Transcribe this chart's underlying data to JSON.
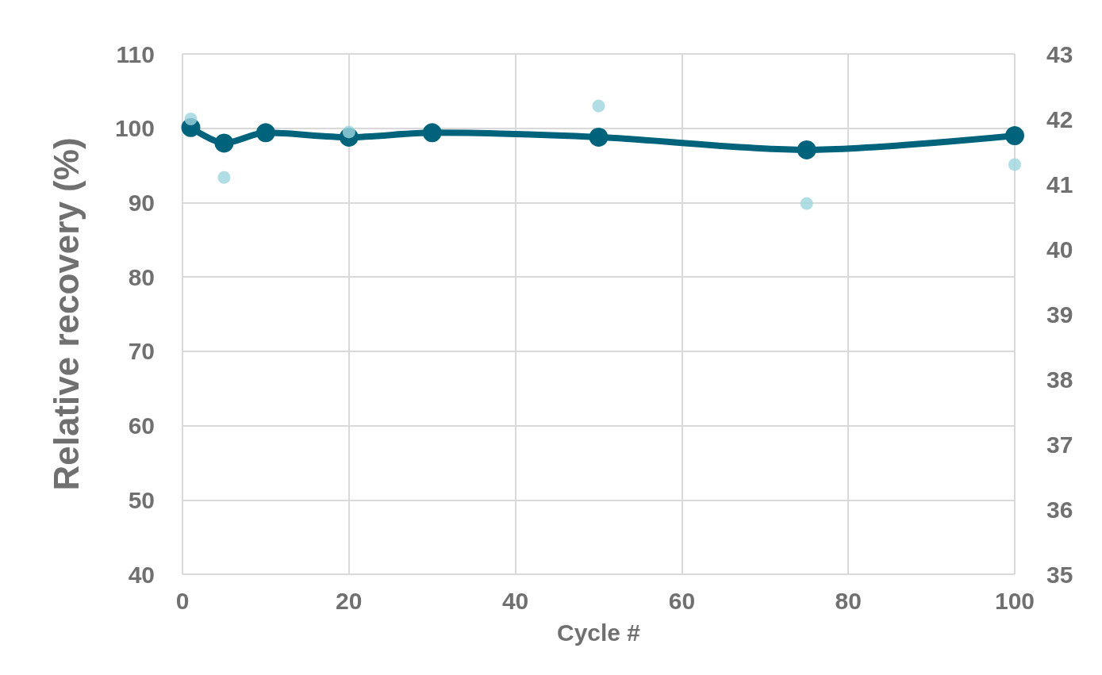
{
  "chart_data": {
    "type": "line",
    "xlabel": "Cycle #",
    "ylabel": "Relative recovery (%)",
    "xlim": [
      0,
      100
    ],
    "xticks": [
      0,
      20,
      40,
      60,
      80,
      100
    ],
    "ylim": [
      40,
      110
    ],
    "yticks": [
      40,
      50,
      60,
      70,
      80,
      90,
      100,
      110
    ],
    "y2lim": [
      35,
      43
    ],
    "y2ticks": [
      35,
      36,
      37,
      38,
      39,
      40,
      41,
      42,
      43
    ],
    "grid": true,
    "marker": "circle",
    "series": [
      {
        "color": "#00637c",
        "x": [
          1,
          5,
          10,
          20,
          30,
          50,
          75,
          100
        ],
        "values": [
          100.1,
          98.0,
          99.4,
          98.8,
          99.4,
          98.8,
          97.1,
          99.0
        ]
      },
      {
        "type": "scatter",
        "axis": "y2",
        "color": "#9dd4de",
        "x": [
          1,
          5,
          20,
          50,
          75,
          100
        ],
        "values": [
          42.0,
          41.1,
          41.8,
          42.2,
          40.7,
          41.3
        ]
      }
    ]
  }
}
